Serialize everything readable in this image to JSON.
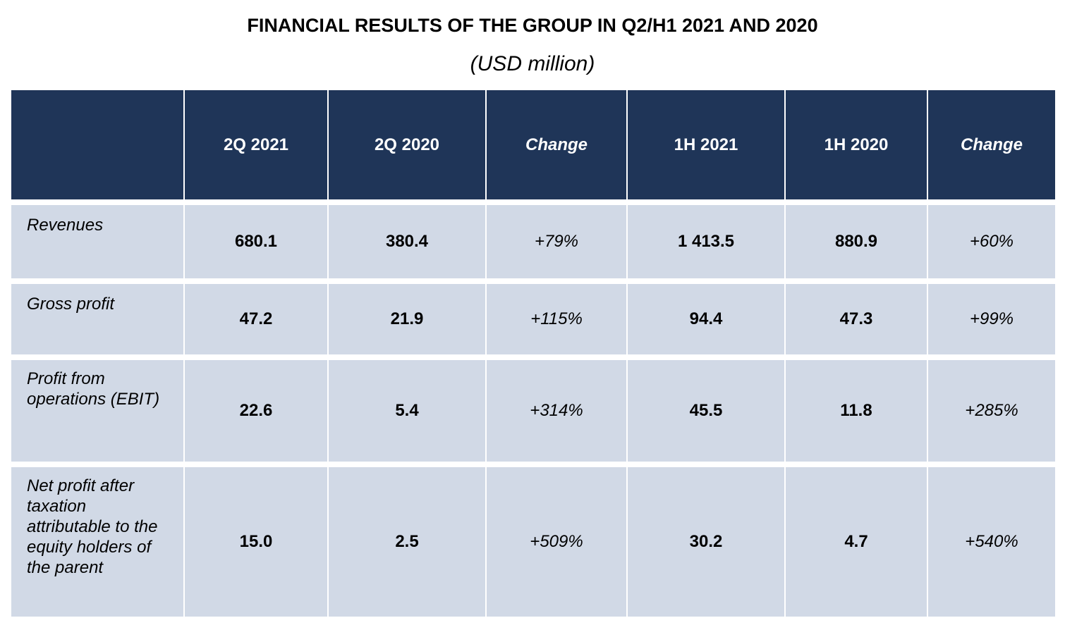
{
  "title": "FINANCIAL RESULTS OF THE GROUP IN Q2/H1 2021 AND 2020",
  "subtitle": "(USD million)",
  "table": {
    "headers": [
      "",
      "2Q 2021",
      "2Q 2020",
      "Change",
      "1H 2021",
      "1H 2020",
      "Change"
    ],
    "rows": [
      {
        "label": "Revenues",
        "values": [
          "680.1",
          "380.4",
          "+79%",
          "1 413.5",
          "880.9",
          "+60%"
        ]
      },
      {
        "label": "Gross profit",
        "values": [
          "47.2",
          "21.9",
          "+115%",
          "94.4",
          "47.3",
          "+99%"
        ]
      },
      {
        "label": "Profit from operations (EBIT)",
        "values": [
          "22.6",
          "5.4",
          "+314%",
          "45.5",
          "11.8",
          "+285%"
        ]
      },
      {
        "label": "Net profit after taxation attributable to the equity holders of the parent",
        "values": [
          "15.0",
          "2.5",
          "+509%",
          "30.2",
          "4.7",
          "+540%"
        ]
      }
    ]
  },
  "colors": {
    "header_bg": "#1f3558",
    "row_bg": "#d1d9e6"
  }
}
